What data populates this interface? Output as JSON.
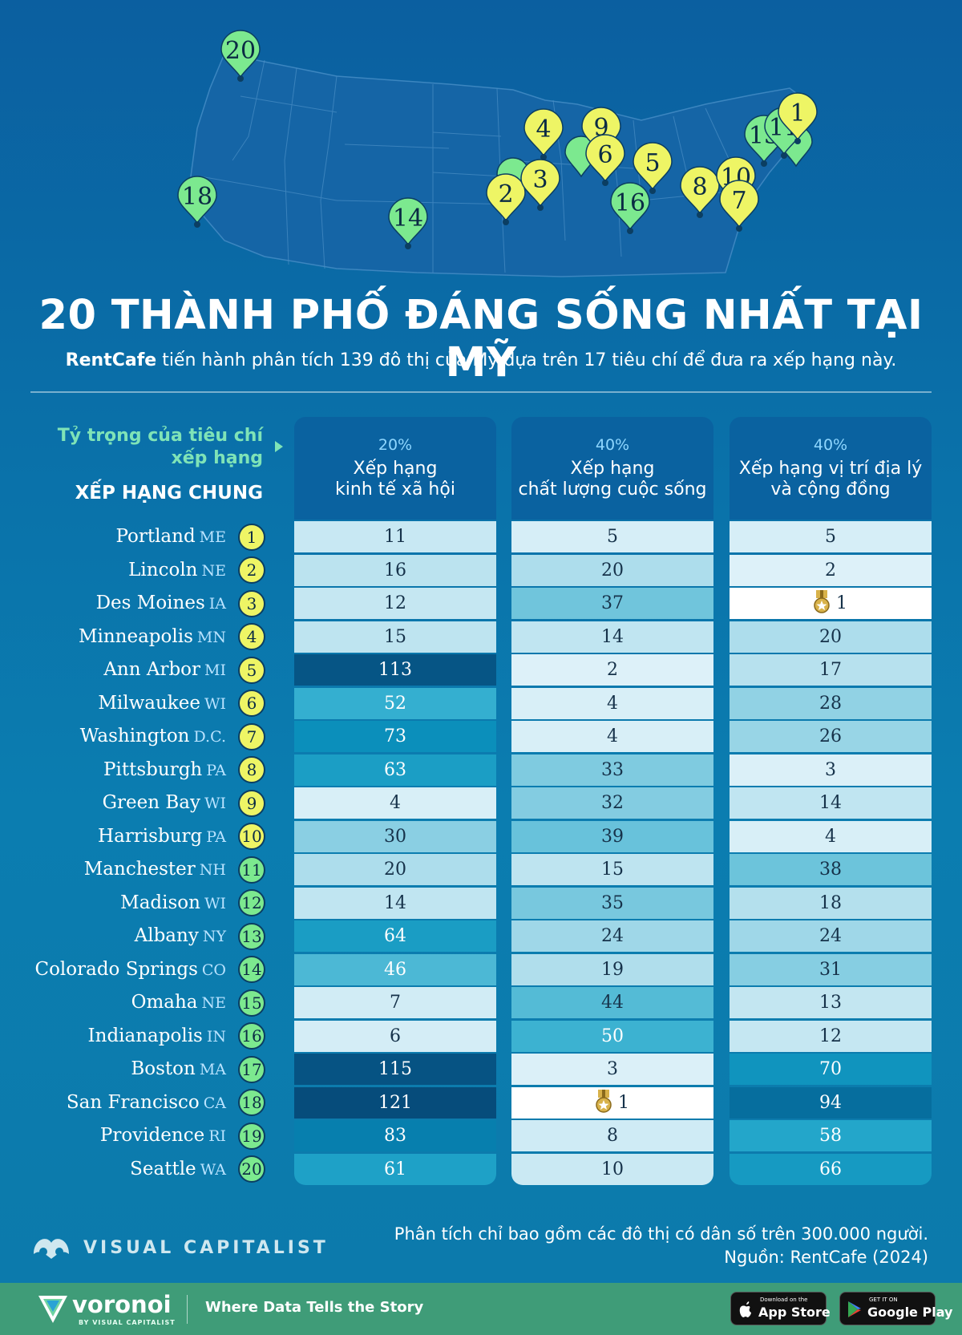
{
  "title": "20 THÀNH PHỐ ĐÁNG SỐNG NHẤT TẠI MỸ",
  "subtitle_brand": "RentCafe",
  "subtitle_text": " tiến hành phân tích 139 đô thị của Mỹ dựa trên 17 tiêu chí để đưa ra xếp hạng này.",
  "weight_label": "Tỷ trọng của tiêu chí xếp hạng",
  "overall_label": "XẾP HẠNG CHUNG",
  "note_line1": "Phân tích chỉ bao gồm các đô thị có dân số trên 300.000 người.",
  "note_line2": "Nguồn: RentCafe (2024)",
  "brand_name": "VISUAL CAPITALIST",
  "footer": {
    "voronoi": "voronoi",
    "voronoi_by": "BY VISUAL CAPITALIST",
    "tagline": "Where Data Tells the Story",
    "appstore_small": "Download on the",
    "appstore_big": "App Store",
    "googleplay_small": "GET IT ON",
    "googleplay_big": "Google Play"
  },
  "colors": {
    "badge_yellow": "#eef565",
    "badge_green": "#7ce98f",
    "medal": "#d8b24a"
  },
  "chart_data": {
    "type": "table",
    "columns": [
      {
        "weight": "20%",
        "label_line1": "Xếp hạng",
        "label_line2": "kinh tế xã hội"
      },
      {
        "weight": "40%",
        "label_line1": "Xếp hạng",
        "label_line2": "chất lượng cuộc sống"
      },
      {
        "weight": "40%",
        "label_line1": "Xếp hạng vị trí địa lý",
        "label_line2": "và cộng đồng"
      }
    ],
    "rows": [
      {
        "rank": 1,
        "city": "Portland",
        "state": "ME",
        "values": [
          11,
          5,
          5
        ]
      },
      {
        "rank": 2,
        "city": "Lincoln",
        "state": "NE",
        "values": [
          16,
          20,
          2
        ]
      },
      {
        "rank": 3,
        "city": "Des Moines",
        "state": "IA",
        "values": [
          12,
          37,
          1
        ]
      },
      {
        "rank": 4,
        "city": "Minneapolis",
        "state": "MN",
        "values": [
          15,
          14,
          20
        ]
      },
      {
        "rank": 5,
        "city": "Ann Arbor",
        "state": "MI",
        "values": [
          113,
          2,
          17
        ]
      },
      {
        "rank": 6,
        "city": "Milwaukee",
        "state": "WI",
        "values": [
          52,
          4,
          28
        ]
      },
      {
        "rank": 7,
        "city": "Washington",
        "state": "D.C.",
        "values": [
          73,
          4,
          26
        ]
      },
      {
        "rank": 8,
        "city": "Pittsburgh",
        "state": "PA",
        "values": [
          63,
          33,
          3
        ]
      },
      {
        "rank": 9,
        "city": "Green Bay",
        "state": "WI",
        "values": [
          4,
          32,
          14
        ]
      },
      {
        "rank": 10,
        "city": "Harrisburg",
        "state": "PA",
        "values": [
          30,
          39,
          4
        ]
      },
      {
        "rank": 11,
        "city": "Manchester",
        "state": "NH",
        "values": [
          20,
          15,
          38
        ]
      },
      {
        "rank": 12,
        "city": "Madison",
        "state": "WI",
        "values": [
          14,
          35,
          18
        ]
      },
      {
        "rank": 13,
        "city": "Albany",
        "state": "NY",
        "values": [
          64,
          24,
          24
        ]
      },
      {
        "rank": 14,
        "city": "Colorado Springs",
        "state": "CO",
        "values": [
          46,
          19,
          31
        ]
      },
      {
        "rank": 15,
        "city": "Omaha",
        "state": "NE",
        "values": [
          7,
          44,
          13
        ]
      },
      {
        "rank": 16,
        "city": "Indianapolis",
        "state": "IN",
        "values": [
          6,
          50,
          12
        ]
      },
      {
        "rank": 17,
        "city": "Boston",
        "state": "MA",
        "values": [
          115,
          3,
          70
        ]
      },
      {
        "rank": 18,
        "city": "San Francisco",
        "state": "CA",
        "values": [
          121,
          1,
          94
        ]
      },
      {
        "rank": 19,
        "city": "Providence",
        "state": "RI",
        "values": [
          83,
          8,
          58
        ]
      },
      {
        "rank": 20,
        "city": "Seattle",
        "state": "WA",
        "values": [
          61,
          10,
          66
        ]
      }
    ],
    "map_pins": [
      20,
      18,
      14,
      2,
      3,
      4,
      9,
      6,
      5,
      16,
      8,
      10,
      7,
      13,
      11,
      1
    ]
  }
}
